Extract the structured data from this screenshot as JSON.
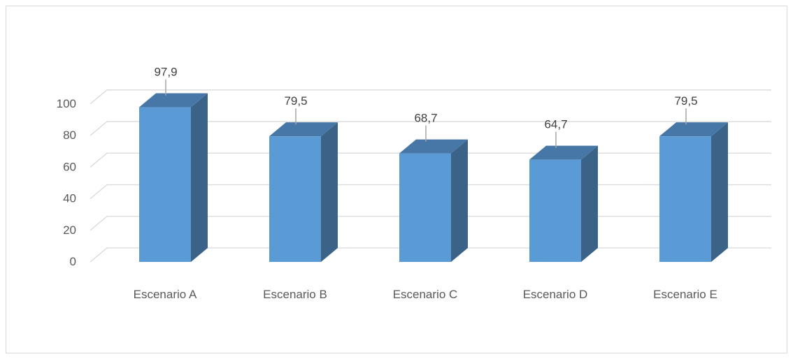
{
  "chart_data": {
    "type": "bar",
    "style": "3d-column",
    "categories": [
      "Escenario A",
      "Escenario B",
      "Escenario C",
      "Escenario D",
      "Escenario E"
    ],
    "values": [
      97.9,
      79.5,
      68.7,
      64.7,
      79.5
    ],
    "value_labels": [
      "97,9",
      "79,5",
      "68,7",
      "64,7",
      "79,5"
    ],
    "yticks": [
      "0",
      "20",
      "40",
      "60",
      "80",
      "100"
    ],
    "ylim": [
      0,
      100
    ],
    "grid": true,
    "legend": "none",
    "colors": {
      "bar_front": "#5B9BD5",
      "bar_side": "#3A6387",
      "bar_top": "#4677A6",
      "grid": "#D9D9D9",
      "leader": "#A6A6A6"
    }
  }
}
